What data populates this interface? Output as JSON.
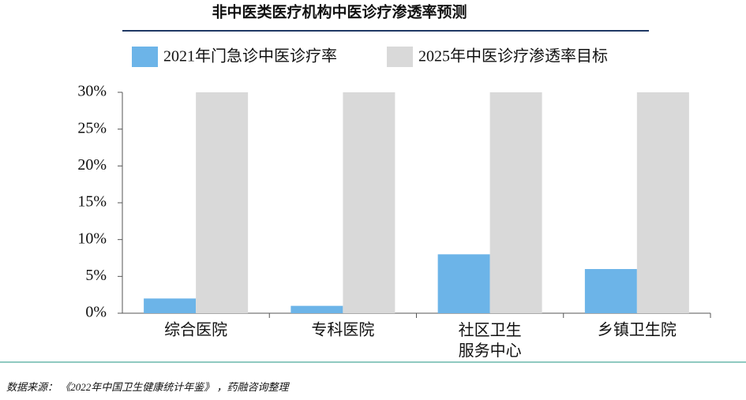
{
  "chart_data": {
    "type": "bar",
    "title": "非中医类医疗机构中医诊疗渗透率预测",
    "categories": [
      "综合医院",
      "专科医院",
      "社区卫生\n服务中心",
      "乡镇卫生院"
    ],
    "series": [
      {
        "name": "2021年门急诊中医诊疗率",
        "color": "#6cb4e8",
        "values": [
          2,
          1,
          8,
          6
        ]
      },
      {
        "name": "2025年中医诊疗渗透率目标",
        "color": "#d9d9d9",
        "values": [
          30,
          30,
          30,
          30
        ]
      }
    ],
    "ylim": [
      0,
      30
    ],
    "yticks": [
      {
        "value": 0,
        "label": "0%"
      },
      {
        "value": 5,
        "label": "5%"
      },
      {
        "value": 10,
        "label": "10%"
      },
      {
        "value": 15,
        "label": "15%"
      },
      {
        "value": 20,
        "label": "20%"
      },
      {
        "value": 25,
        "label": "25%"
      },
      {
        "value": 30,
        "label": "30%"
      }
    ],
    "legend": "top",
    "source": "数据来源：  《2022年中国卫生健康统计年鉴》 ，药融咨询整理"
  }
}
